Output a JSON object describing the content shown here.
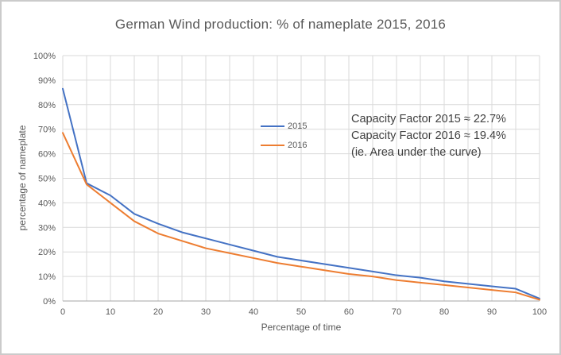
{
  "chart_data": {
    "type": "line",
    "title": "German Wind production: % of nameplate 2015, 2016",
    "xlabel": "Percentage of time",
    "ylabel": "percentage of nameplate",
    "xlim": [
      0,
      100
    ],
    "ylim": [
      0,
      100
    ],
    "grid": true,
    "x_minor_grid_step": 5,
    "x_major_ticks": [
      0,
      10,
      20,
      30,
      40,
      50,
      60,
      70,
      80,
      90,
      100
    ],
    "x_tick_labels": [
      "0",
      "10",
      "20",
      "30",
      "40",
      "50",
      "60",
      "70",
      "80",
      "90",
      "100"
    ],
    "y_tick_values": [
      0,
      10,
      20,
      30,
      40,
      50,
      60,
      70,
      80,
      90,
      100
    ],
    "y_tick_labels": [
      "0%",
      "10%",
      "20%",
      "30%",
      "40%",
      "50%",
      "60%",
      "70%",
      "80%",
      "90%",
      "100%"
    ],
    "x": [
      0,
      5,
      10,
      15,
      20,
      25,
      30,
      35,
      40,
      45,
      50,
      55,
      60,
      65,
      70,
      75,
      80,
      85,
      90,
      95,
      100
    ],
    "series": [
      {
        "name": "2015",
        "color": "#4472C4",
        "values": [
          86.5,
          48,
          43,
          35.5,
          31.5,
          28,
          25.5,
          23,
          20.5,
          18,
          16.5,
          15,
          13.5,
          12,
          10.5,
          9.5,
          8,
          7,
          6,
          5,
          1
        ]
      },
      {
        "name": "2016",
        "color": "#ED7D31",
        "values": [
          68.5,
          47.5,
          40,
          32.5,
          27.5,
          24.5,
          21.5,
          19.5,
          17.5,
          15.5,
          14,
          12.5,
          11,
          10,
          8.5,
          7.5,
          6.5,
          5.5,
          4.5,
          3.5,
          0.5
        ]
      }
    ],
    "legend_position": "inside-center-left",
    "gridline_color": "#d9d9d9",
    "axis_line_color": "#a6a6a6",
    "tick_label_color": "#595959"
  },
  "annotation": {
    "lines": [
      "Capacity Factor 2015 ≈ 22.7%",
      "Capacity Factor 2016 ≈ 19.4%",
      "(ie. Area under the curve)"
    ]
  }
}
